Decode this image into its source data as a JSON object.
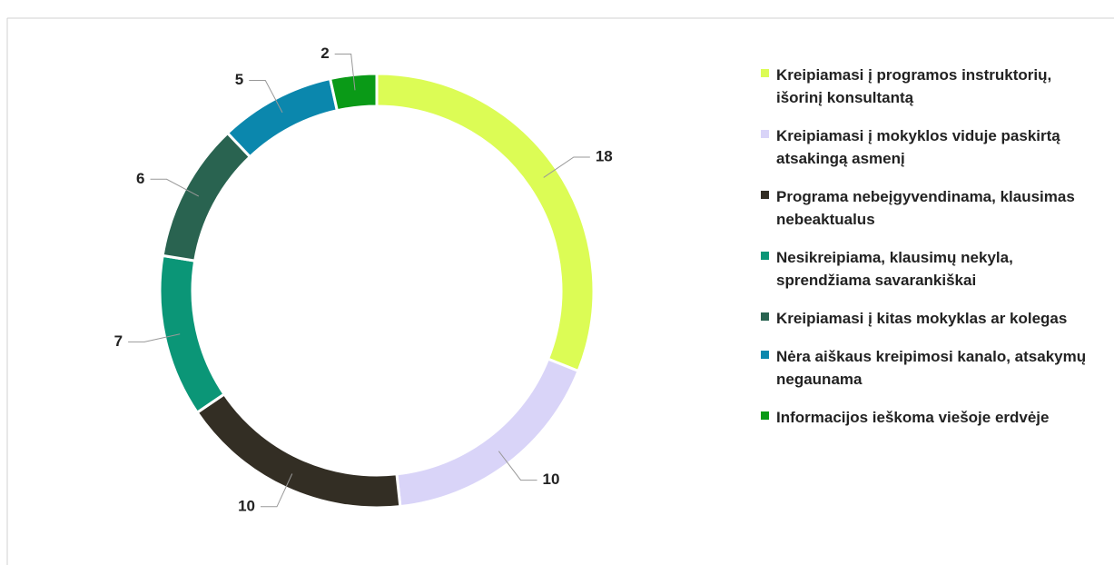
{
  "chart_data": {
    "type": "donut",
    "categories": [
      "Kreipiamasi į programos instruktorių, išorinį konsultantą",
      "Kreipiamasi į mokyklos viduje paskirtą atsakingą asmenį",
      "Programa nebeįgyvendinama, klausimas nebeaktualus",
      "Nesikreipiama, klausimų nekyla, sprendžiama savarankiškai",
      "Kreipiamasi į kitas mokyklas ar kolegas",
      "Nėra aiškaus kreipimosi kanalo, atsakymų negaunama",
      "Informacijos ieškoma viešoje erdvėje"
    ],
    "values": [
      18,
      10,
      10,
      7,
      6,
      5,
      2
    ],
    "colors": [
      "#dcfc55",
      "#d9d4f8",
      "#332e24",
      "#0b9677",
      "#296350",
      "#0b87ad",
      "#0a9a17"
    ],
    "legend": "right"
  }
}
